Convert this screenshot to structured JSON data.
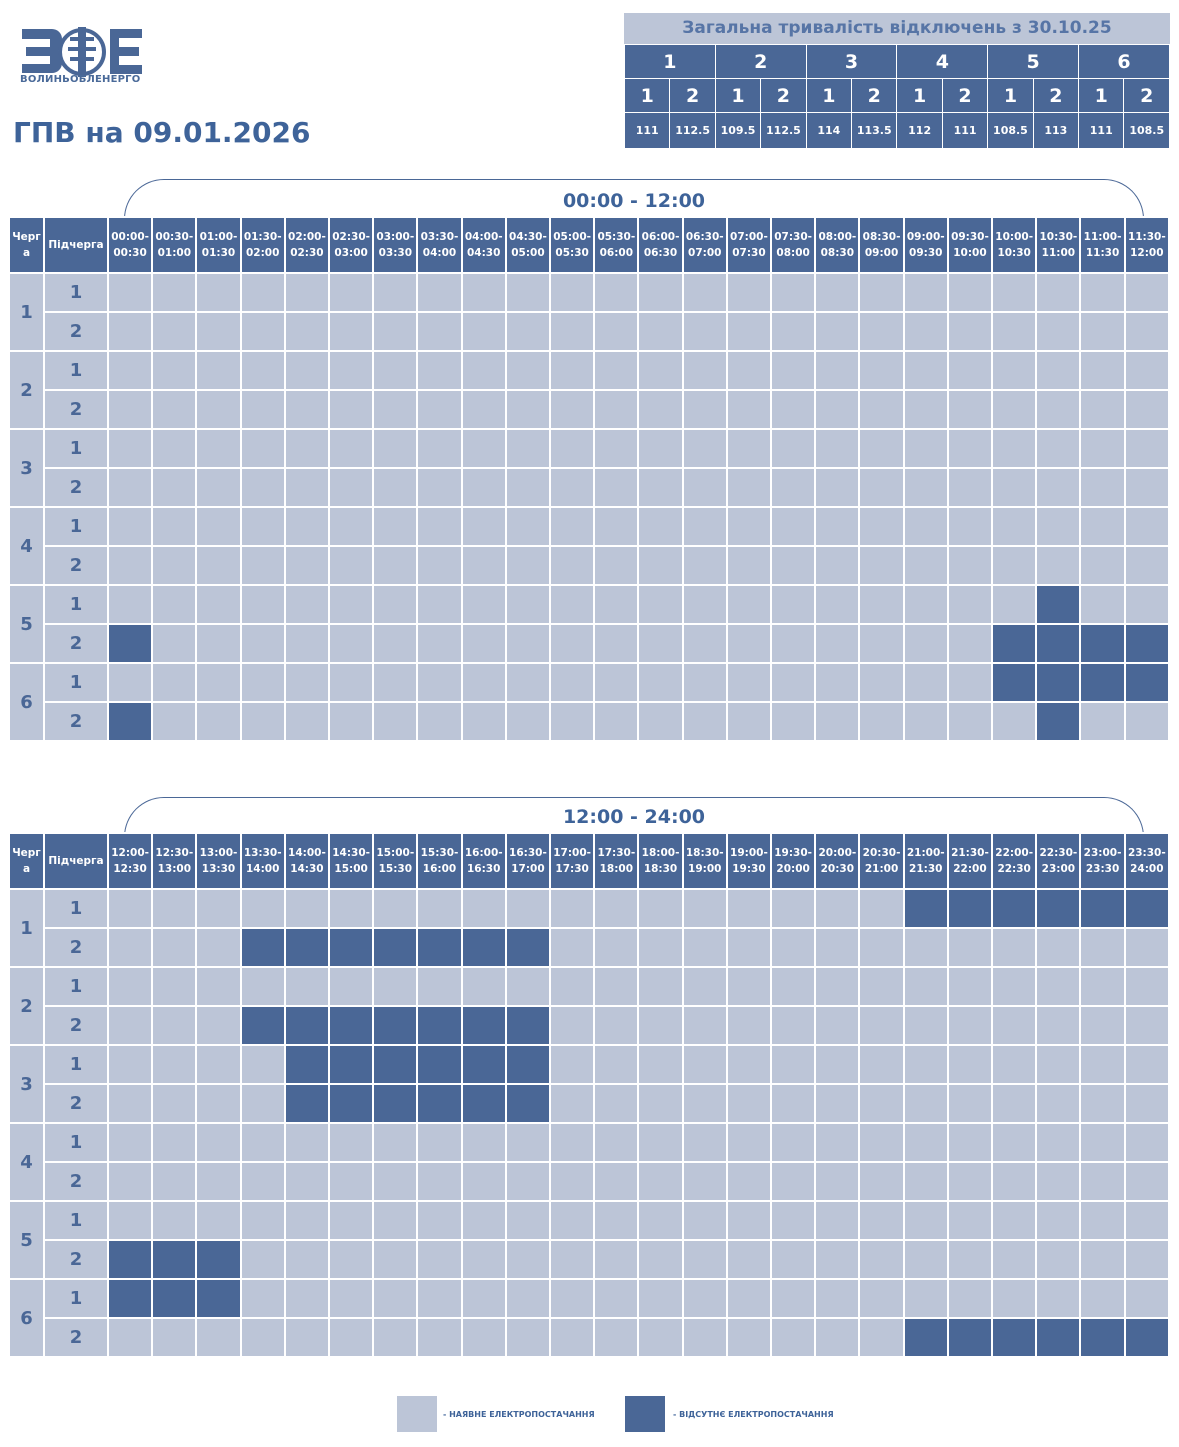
{
  "header": {
    "logo_name": "ВОЛИНЬОБЛЕНЕРГО",
    "title": "ГПВ на 09.01.2026"
  },
  "summary": {
    "title": "Загальна тривалість відключень з 30.10.25",
    "queues": [
      "1",
      "2",
      "3",
      "4",
      "5",
      "6"
    ],
    "subqueues": [
      "1",
      "2",
      "1",
      "2",
      "1",
      "2",
      "1",
      "2",
      "1",
      "2",
      "1",
      "2"
    ],
    "values": [
      "111",
      "112.5",
      "109.5",
      "112.5",
      "114",
      "113.5",
      "112",
      "111",
      "108.5",
      "113",
      "111",
      "108.5"
    ]
  },
  "table_header": {
    "queue": "Черг а",
    "subqueue": "Підчерга"
  },
  "queue_labels": [
    "1",
    "2",
    "3",
    "4",
    "5",
    "6"
  ],
  "sub_labels": [
    "1",
    "2"
  ],
  "halves": [
    {
      "range": "00:00 - 12:00",
      "slots": [
        "00:00- 00:30",
        "00:30- 01:00",
        "01:00- 01:30",
        "01:30- 02:00",
        "02:00- 02:30",
        "02:30- 03:00",
        "03:00- 03:30",
        "03:30- 04:00",
        "04:00- 04:30",
        "04:30- 05:00",
        "05:00- 05:30",
        "05:30- 06:00",
        "06:00- 06:30",
        "06:30- 07:00",
        "07:00- 07:30",
        "07:30- 08:00",
        "08:00- 08:30",
        "08:30- 09:00",
        "09:00- 09:30",
        "09:30- 10:00",
        "10:00- 10:30",
        "10:30- 11:00",
        "11:00- 11:30",
        "11:30- 12:00"
      ],
      "outages": [
        [],
        [],
        [],
        [],
        [],
        [],
        [],
        [],
        [
          21
        ],
        [
          0,
          20,
          21,
          22,
          23
        ],
        [
          20,
          21,
          22,
          23
        ],
        [
          0,
          21
        ]
      ]
    },
    {
      "range": "12:00 - 24:00",
      "slots": [
        "12:00- 12:30",
        "12:30- 13:00",
        "13:00- 13:30",
        "13:30- 14:00",
        "14:00- 14:30",
        "14:30- 15:00",
        "15:00- 15:30",
        "15:30- 16:00",
        "16:00- 16:30",
        "16:30- 17:00",
        "17:00- 17:30",
        "17:30- 18:00",
        "18:00- 18:30",
        "18:30- 19:00",
        "19:00- 19:30",
        "19:30- 20:00",
        "20:00- 20:30",
        "20:30- 21:00",
        "21:00- 21:30",
        "21:30- 22:00",
        "22:00- 22:30",
        "22:30- 23:00",
        "23:00- 23:30",
        "23:30- 24:00"
      ],
      "outages": [
        [
          18,
          19,
          20,
          21,
          22,
          23
        ],
        [
          3,
          4,
          5,
          6,
          7,
          8,
          9
        ],
        [],
        [
          3,
          4,
          5,
          6,
          7,
          8,
          9
        ],
        [
          4,
          5,
          6,
          7,
          8,
          9
        ],
        [
          4,
          5,
          6,
          7,
          8,
          9
        ],
        [],
        [],
        [],
        [
          0,
          1,
          2
        ],
        [
          0,
          1,
          2
        ],
        [
          18,
          19,
          20,
          21,
          22,
          23
        ]
      ]
    }
  ],
  "legend": {
    "available": "- НАЯВНЕ ЕЛЕКТРОПОСТАЧАННЯ",
    "absent": "- ВІДСУТНЄ ЕЛЕКТРОПОСТАЧАННЯ"
  },
  "colors": {
    "on": "#bcc5d7",
    "off": "#4a6796"
  }
}
